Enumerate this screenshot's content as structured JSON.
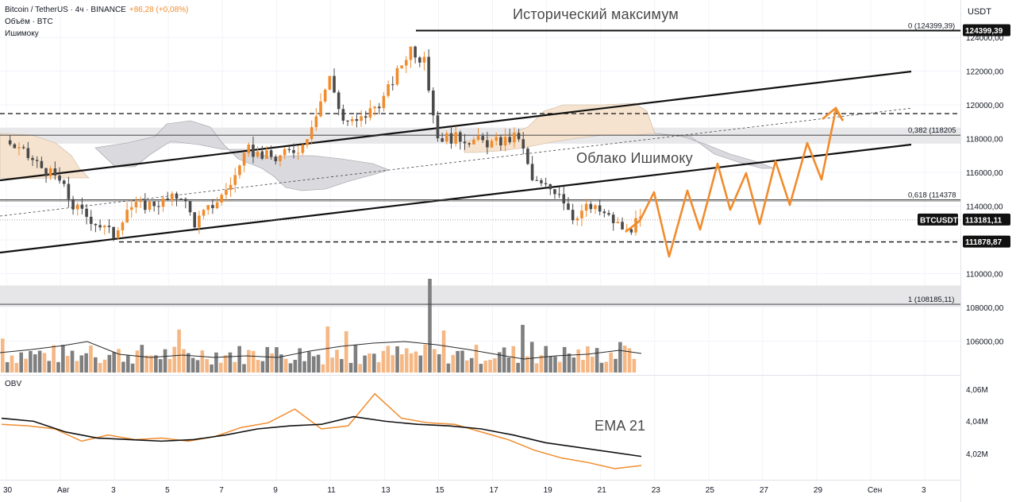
{
  "header": {
    "title": "Bitcoin / TetherUS · 4ч · BINANCE",
    "change": "+86,28 (+0,08%)",
    "volume_label": "Объём · BTC",
    "ichimoku_label": "Ишимоку",
    "obv_label": "OBV"
  },
  "axis": {
    "currency": "USDT",
    "price_ticks": [
      "124000,00",
      "122000,00",
      "120000,00",
      "118000,00",
      "116000,00",
      "114000,00",
      "112000,00",
      "110000,00",
      "108000,00",
      "106000,00"
    ],
    "obv_ticks": [
      "4,06M",
      "4,04M",
      "4,02M"
    ],
    "time_ticks": [
      "30",
      "Авг",
      "3",
      "5",
      "7",
      "9",
      "11",
      "13",
      "15",
      "17",
      "19",
      "21",
      "23",
      "25",
      "27",
      "29",
      "Сен",
      "3"
    ]
  },
  "annotations": {
    "ath": "Исторический максимум",
    "cloud": "Облако Ишимоку",
    "ema": "EMA 21"
  },
  "levels": [
    {
      "label": "0 (124399,39)",
      "price": 124399.39,
      "badge": "124399,39"
    },
    {
      "label": "0,382 (118205",
      "price": 118205
    },
    {
      "label": "0,618 (114378",
      "price": 114378
    },
    {
      "label": "1 (108185,11)",
      "price": 108185.11
    }
  ],
  "badges": {
    "symbol": "BTCUSDT",
    "last_price": "113181,11",
    "support": "111878,87"
  },
  "colors": {
    "up": "#f08c2d",
    "down": "#4a4a4a",
    "vol_up": "#f5b783",
    "vol_down": "#7f7f7f",
    "cloud_bull": "#f6e3cf",
    "cloud_bear": "#d9d9de",
    "zone": "#e5e5e8",
    "forecast": "#f08c2d"
  },
  "chart_data": [
    {
      "type": "candlestick",
      "title": "Bitcoin / TetherUS · 4ч · BINANCE",
      "xlabel": "",
      "ylabel": "USDT",
      "ylim": [
        104500,
        125200
      ],
      "x_ticks": [
        "30",
        "Авг",
        "3",
        "5",
        "7",
        "9",
        "11",
        "13",
        "15",
        "17",
        "19",
        "21",
        "23",
        "25",
        "27",
        "29",
        "Сен",
        "3"
      ],
      "close_path": [
        [
          "30",
          117900
        ],
        [
          "Авг",
          115500
        ],
        [
          "Авг",
          114000
        ],
        [
          "3",
          112300
        ],
        [
          "3",
          113900
        ],
        [
          "5",
          114300
        ],
        [
          "5",
          114700
        ],
        [
          "6",
          113000
        ],
        [
          "7",
          114600
        ],
        [
          "7",
          115800
        ],
        [
          "8",
          117300
        ],
        [
          "9",
          116800
        ],
        [
          "10",
          117600
        ],
        [
          "11",
          121600
        ],
        [
          "11",
          119100
        ],
        [
          "12",
          118900
        ],
        [
          "13",
          120400
        ],
        [
          "14",
          123400
        ],
        [
          "14",
          122500
        ],
        [
          "15",
          118100
        ],
        [
          "16",
          118000
        ],
        [
          "17",
          117700
        ],
        [
          "18",
          118100
        ],
        [
          "18",
          115500
        ],
        [
          "19",
          115100
        ],
        [
          "19",
          114900
        ],
        [
          "20",
          113400
        ],
        [
          "20",
          113900
        ],
        [
          "21",
          113700
        ],
        [
          "22",
          112500
        ],
        [
          "22",
          113181.11
        ]
      ],
      "last_price": 113181.11,
      "support": 111878.87,
      "all_time_high": 124399.39,
      "fib_levels": {
        "0": 124399.39,
        "0.382": 118205,
        "0.618": 114378,
        "1": 108185.11
      }
    },
    {
      "type": "line",
      "title": "OBV",
      "ylim": [
        4.012,
        4.064
      ],
      "series": [
        {
          "name": "OBV",
          "values": [
            4.041,
            4.04,
            4.038,
            4.03,
            4.034,
            4.031,
            4.032,
            4.03,
            4.033,
            4.039,
            4.042,
            4.051,
            4.038,
            4.04,
            4.061,
            4.045,
            4.042,
            4.041,
            4.036,
            4.031,
            4.024,
            4.019,
            4.016,
            4.012,
            4.014
          ]
        },
        {
          "name": "EMA 21",
          "values": [
            4.045,
            4.043,
            4.036,
            4.032,
            4.031,
            4.03,
            4.031,
            4.034,
            4.038,
            4.04,
            4.041,
            4.046,
            4.043,
            4.041,
            4.04,
            4.038,
            4.034,
            4.029,
            4.026,
            4.023,
            4.02
          ]
        }
      ]
    }
  ]
}
